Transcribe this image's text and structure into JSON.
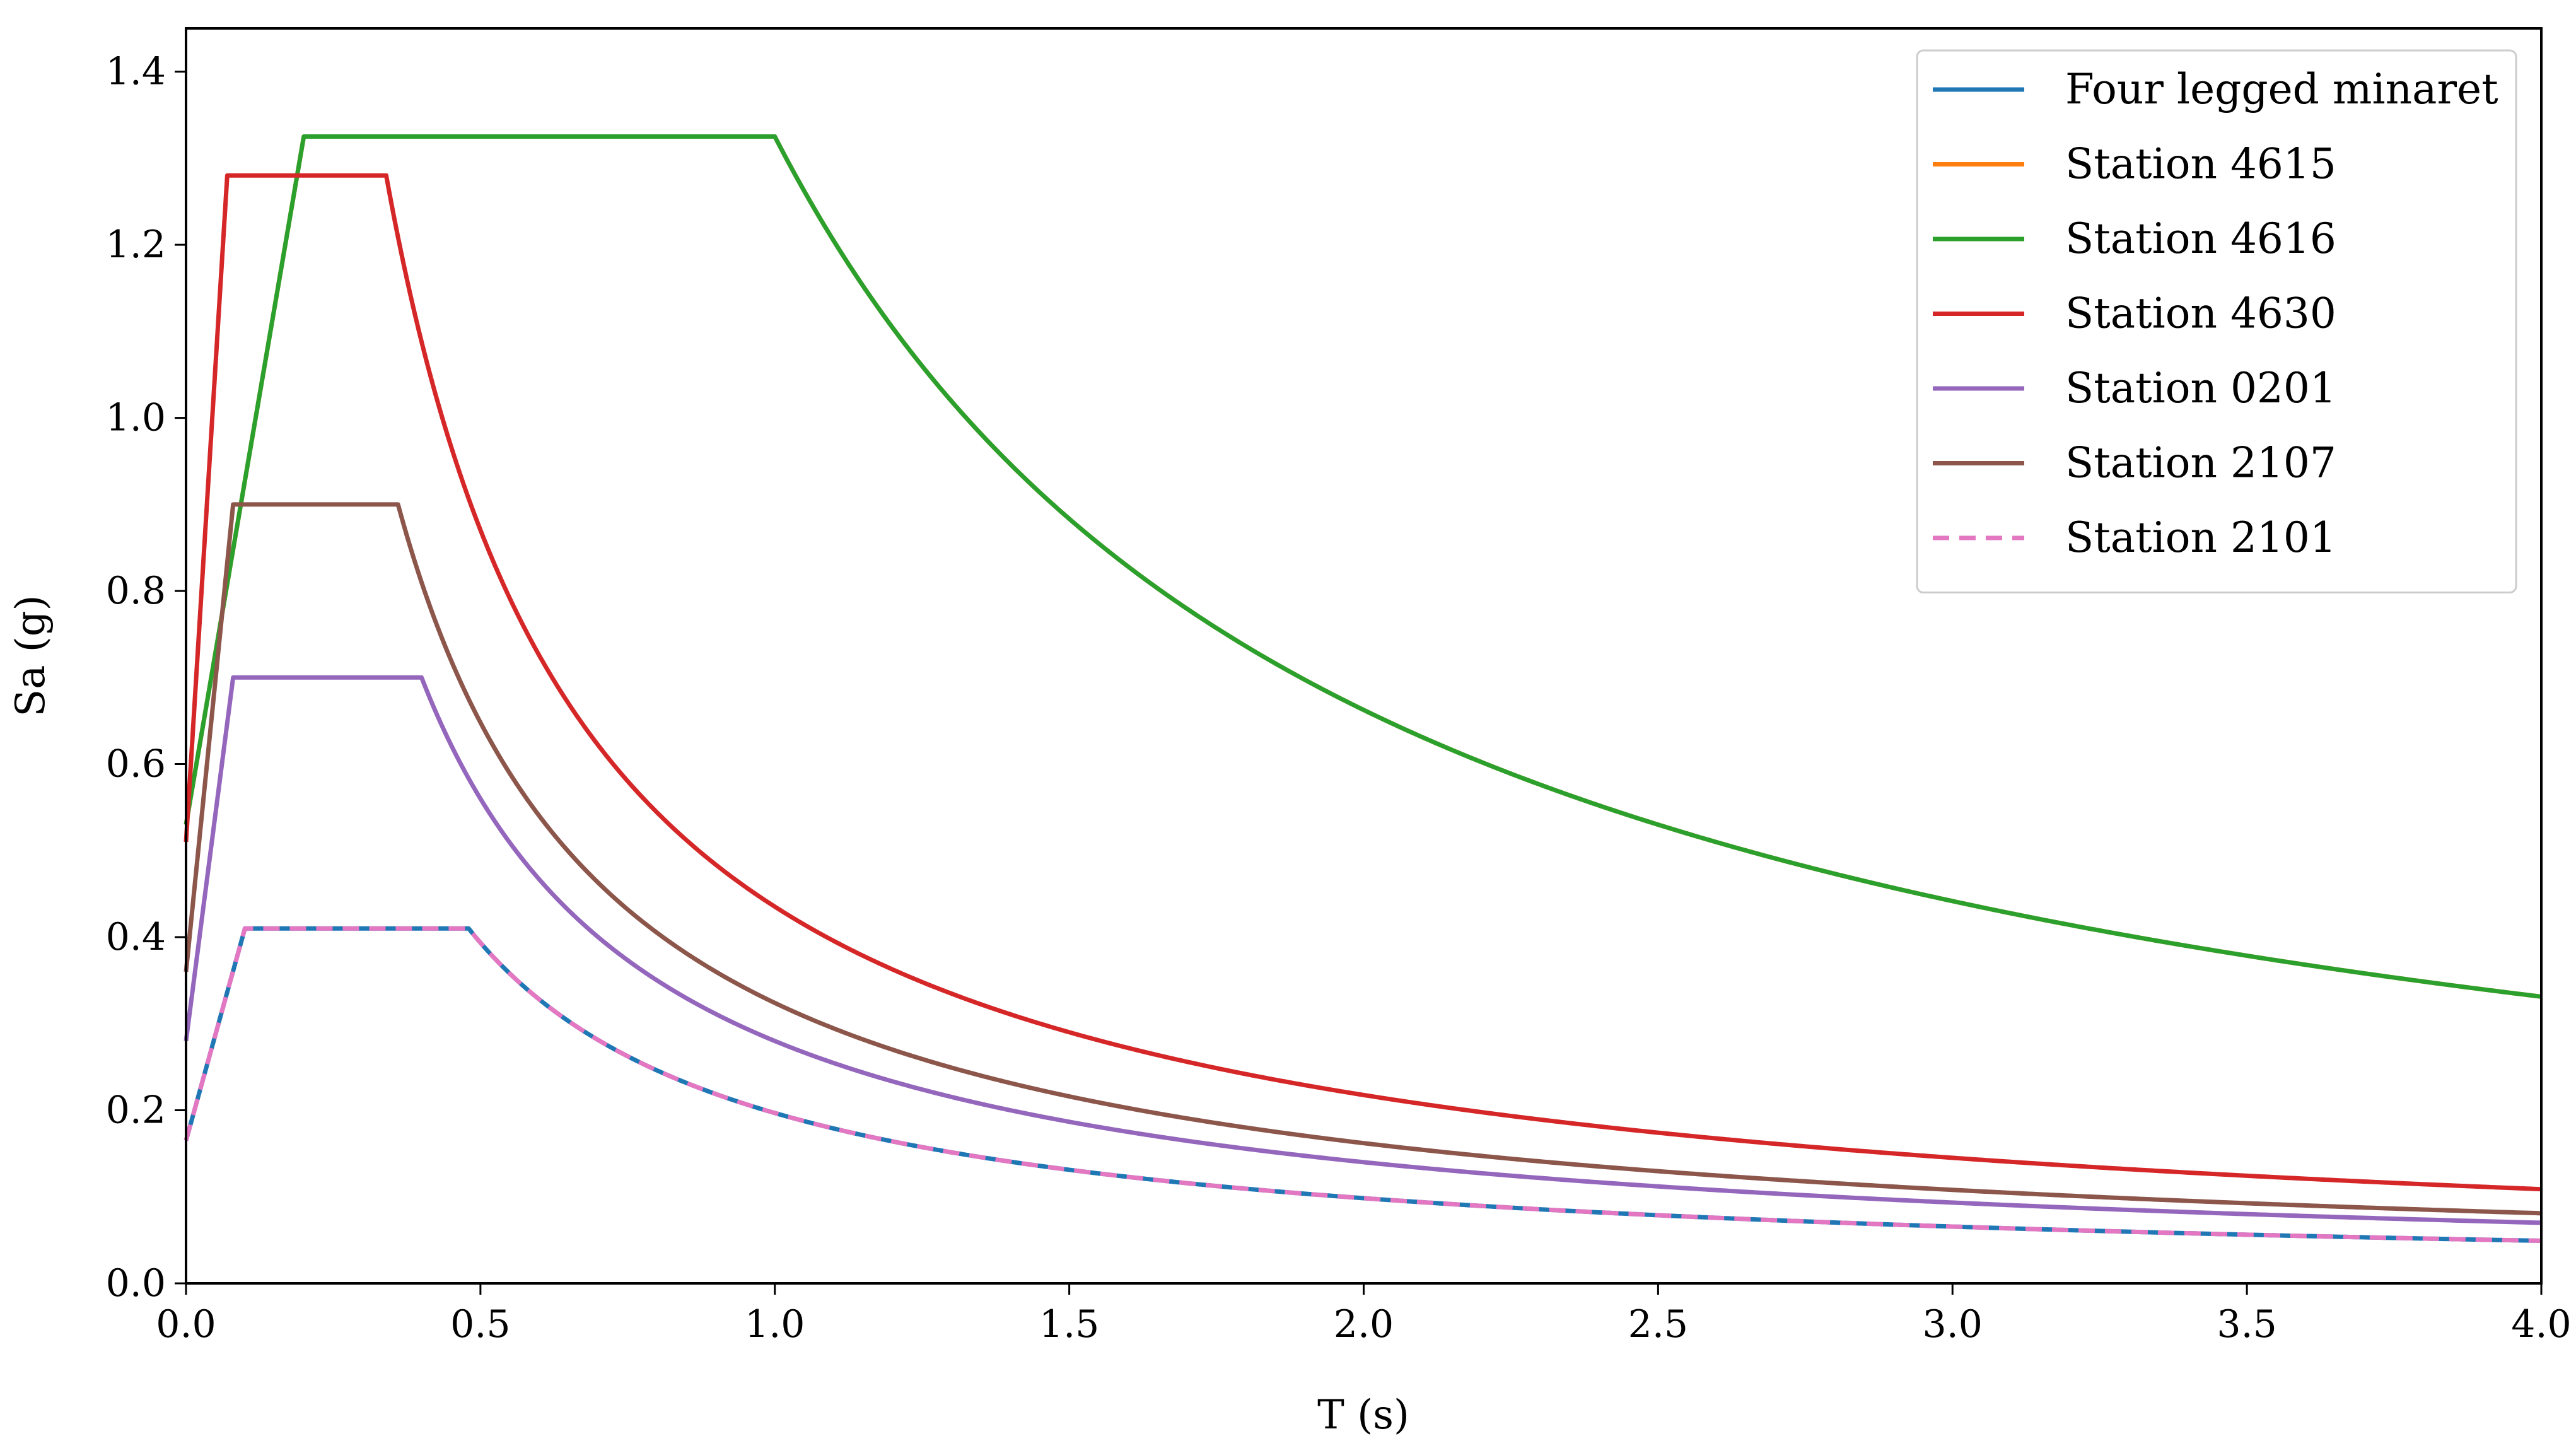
{
  "chart_data": {
    "type": "line",
    "xlabel": "T (s)",
    "ylabel": "Sa (g)",
    "xlim": [
      0.0,
      4.0
    ],
    "ylim": [
      0.0,
      1.45
    ],
    "xticks": [
      "0.0",
      "0.5",
      "1.0",
      "1.5",
      "2.0",
      "2.5",
      "3.0",
      "3.5",
      "4.0"
    ],
    "yticks": [
      "0.0",
      "0.2",
      "0.4",
      "0.6",
      "0.8",
      "1.0",
      "1.2",
      "1.4"
    ],
    "grid": false,
    "legend_position": "top-right",
    "series": [
      {
        "name": "Four legged minaret",
        "color": "#1f77b4",
        "dashed": false,
        "S0": 0.165,
        "Sa_max": 0.41,
        "T_A": 0.1,
        "T_B": 0.48,
        "Sa_at_4s": 0.049
      },
      {
        "name": "Station 4615",
        "color": "#ff7f0e",
        "dashed": false,
        "S0": 0.53,
        "Sa_max": 1.325,
        "T_A": 0.2,
        "T_B": 1.0,
        "Sa_at_4s": 0.331
      },
      {
        "name": "Station 4616",
        "color": "#2ca02c",
        "dashed": false,
        "S0": 0.53,
        "Sa_max": 1.325,
        "T_A": 0.2,
        "T_B": 1.0,
        "Sa_at_4s": 0.331
      },
      {
        "name": "Station 4630",
        "color": "#d62728",
        "dashed": false,
        "S0": 0.51,
        "Sa_max": 1.28,
        "T_A": 0.07,
        "T_B": 0.34,
        "Sa_at_4s": 0.109
      },
      {
        "name": "Station 0201",
        "color": "#9467bd",
        "dashed": false,
        "S0": 0.28,
        "Sa_max": 0.7,
        "T_A": 0.08,
        "T_B": 0.4,
        "Sa_at_4s": 0.07
      },
      {
        "name": "Station 2107",
        "color": "#8c564b",
        "dashed": false,
        "S0": 0.36,
        "Sa_max": 0.9,
        "T_A": 0.08,
        "T_B": 0.36,
        "Sa_at_4s": 0.081
      },
      {
        "name": "Station 2101",
        "color": "#e377c2",
        "dashed": true,
        "S0": 0.165,
        "Sa_max": 0.41,
        "T_A": 0.1,
        "T_B": 0.48,
        "Sa_at_4s": 0.049
      }
    ]
  }
}
